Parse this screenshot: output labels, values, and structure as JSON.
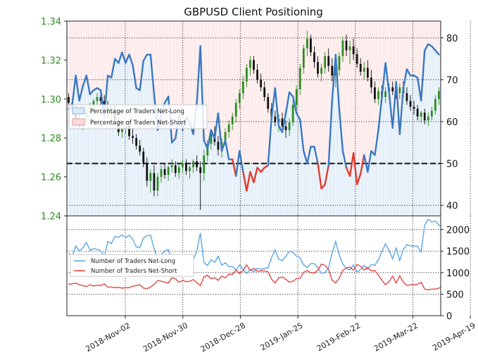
{
  "chart_data": {
    "type": "line",
    "title": "GBPUSD Client Positioning",
    "x_tick_labels": [
      "2018-Nov-02",
      "2018-Nov-30",
      "2018-Dec-28",
      "2019-Jan-25",
      "2019-Feb-22",
      "2019-Mar-22",
      "2019-Apr-19"
    ],
    "colors": {
      "price_axis": "#2e8b22",
      "candle_up": "#2e8b22",
      "candle_down": "#111111",
      "net_long_line": "#3a78c2",
      "net_short_line": "#e23b2e",
      "long_bg": "#dce9f7",
      "short_bg": "#fbdcdc",
      "number_long": "#4ea1e6",
      "number_short": "#e53935"
    },
    "top_panel": {
      "left_axis": {
        "ylim": [
          1.24,
          1.34
        ],
        "ticks": [
          "1.24",
          "1.26",
          "1.28",
          "1.30",
          "1.32",
          "1.34"
        ]
      },
      "right_axis": {
        "ylim": [
          37.5,
          84.0
        ],
        "ticks": [
          "40",
          "50",
          "60",
          "70",
          "80"
        ]
      },
      "reference_line": 50,
      "legend": [
        "Percentage of Traders Net-Long",
        "Percentage of Traders Net-Short"
      ],
      "legend_position": "center-left",
      "price_ohlc": [
        [
          1.301,
          1.303,
          1.297,
          1.298
        ],
        [
          1.298,
          1.3,
          1.294,
          1.295
        ],
        [
          1.295,
          1.297,
          1.288,
          1.29
        ],
        [
          1.29,
          1.292,
          1.285,
          1.286
        ],
        [
          1.286,
          1.29,
          1.284,
          1.289
        ],
        [
          1.289,
          1.295,
          1.287,
          1.293
        ],
        [
          1.293,
          1.298,
          1.291,
          1.296
        ],
        [
          1.296,
          1.3,
          1.293,
          1.299
        ],
        [
          1.299,
          1.303,
          1.296,
          1.301
        ],
        [
          1.301,
          1.304,
          1.297,
          1.299
        ],
        [
          1.299,
          1.302,
          1.294,
          1.296
        ],
        [
          1.296,
          1.299,
          1.29,
          1.292
        ],
        [
          1.292,
          1.296,
          1.289,
          1.294
        ],
        [
          1.294,
          1.297,
          1.288,
          1.289
        ],
        [
          1.289,
          1.291,
          1.281,
          1.283
        ],
        [
          1.283,
          1.287,
          1.28,
          1.285
        ],
        [
          1.285,
          1.289,
          1.282,
          1.287
        ],
        [
          1.287,
          1.289,
          1.279,
          1.281
        ],
        [
          1.281,
          1.285,
          1.277,
          1.28
        ],
        [
          1.28,
          1.282,
          1.274,
          1.276
        ],
        [
          1.276,
          1.279,
          1.271,
          1.273
        ],
        [
          1.273,
          1.275,
          1.265,
          1.267
        ],
        [
          1.267,
          1.27,
          1.255,
          1.258
        ],
        [
          1.258,
          1.264,
          1.252,
          1.262
        ],
        [
          1.262,
          1.266,
          1.25,
          1.253
        ],
        [
          1.253,
          1.262,
          1.25,
          1.26
        ],
        [
          1.26,
          1.266,
          1.257,
          1.264
        ],
        [
          1.264,
          1.267,
          1.259,
          1.261
        ],
        [
          1.261,
          1.266,
          1.258,
          1.265
        ],
        [
          1.265,
          1.269,
          1.262,
          1.266
        ],
        [
          1.266,
          1.268,
          1.26,
          1.262
        ],
        [
          1.262,
          1.267,
          1.259,
          1.265
        ],
        [
          1.265,
          1.269,
          1.262,
          1.267
        ],
        [
          1.267,
          1.269,
          1.261,
          1.263
        ],
        [
          1.263,
          1.266,
          1.259,
          1.265
        ],
        [
          1.265,
          1.269,
          1.262,
          1.268
        ],
        [
          1.268,
          1.271,
          1.263,
          1.265
        ],
        [
          1.265,
          1.268,
          1.243,
          1.262
        ],
        [
          1.262,
          1.274,
          1.258,
          1.271
        ],
        [
          1.271,
          1.279,
          1.268,
          1.277
        ],
        [
          1.277,
          1.284,
          1.274,
          1.282
        ],
        [
          1.282,
          1.286,
          1.276,
          1.278
        ],
        [
          1.278,
          1.281,
          1.271,
          1.274
        ],
        [
          1.274,
          1.28,
          1.27,
          1.278
        ],
        [
          1.278,
          1.285,
          1.276,
          1.283
        ],
        [
          1.283,
          1.289,
          1.28,
          1.287
        ],
        [
          1.287,
          1.293,
          1.284,
          1.291
        ],
        [
          1.291,
          1.3,
          1.288,
          1.298
        ],
        [
          1.298,
          1.305,
          1.295,
          1.303
        ],
        [
          1.303,
          1.312,
          1.3,
          1.309
        ],
        [
          1.309,
          1.318,
          1.306,
          1.316
        ],
        [
          1.316,
          1.322,
          1.312,
          1.32
        ],
        [
          1.32,
          1.322,
          1.313,
          1.315
        ],
        [
          1.315,
          1.318,
          1.308,
          1.31
        ],
        [
          1.31,
          1.313,
          1.304,
          1.306
        ],
        [
          1.306,
          1.309,
          1.299,
          1.301
        ],
        [
          1.301,
          1.303,
          1.293,
          1.295
        ],
        [
          1.295,
          1.298,
          1.289,
          1.291
        ],
        [
          1.291,
          1.294,
          1.286,
          1.288
        ],
        [
          1.288,
          1.292,
          1.283,
          1.29
        ],
        [
          1.29,
          1.293,
          1.284,
          1.286
        ],
        [
          1.286,
          1.289,
          1.28,
          1.284
        ],
        [
          1.284,
          1.29,
          1.281,
          1.288
        ],
        [
          1.288,
          1.299,
          1.286,
          1.297
        ],
        [
          1.297,
          1.307,
          1.294,
          1.305
        ],
        [
          1.305,
          1.318,
          1.302,
          1.316
        ],
        [
          1.316,
          1.328,
          1.313,
          1.326
        ],
        [
          1.326,
          1.335,
          1.322,
          1.331
        ],
        [
          1.331,
          1.333,
          1.322,
          1.324
        ],
        [
          1.324,
          1.327,
          1.316,
          1.319
        ],
        [
          1.319,
          1.322,
          1.311,
          1.313
        ],
        [
          1.313,
          1.318,
          1.309,
          1.316
        ],
        [
          1.316,
          1.324,
          1.313,
          1.322
        ],
        [
          1.322,
          1.326,
          1.314,
          1.317
        ],
        [
          1.317,
          1.321,
          1.309,
          1.312
        ],
        [
          1.312,
          1.317,
          1.306,
          1.315
        ],
        [
          1.315,
          1.324,
          1.312,
          1.322
        ],
        [
          1.322,
          1.332,
          1.319,
          1.33
        ],
        [
          1.33,
          1.333,
          1.322,
          1.325
        ],
        [
          1.325,
          1.33,
          1.318,
          1.327
        ],
        [
          1.327,
          1.331,
          1.32,
          1.323
        ],
        [
          1.323,
          1.326,
          1.316,
          1.318
        ],
        [
          1.318,
          1.321,
          1.312,
          1.314
        ],
        [
          1.314,
          1.319,
          1.31,
          1.316
        ],
        [
          1.316,
          1.32,
          1.309,
          1.311
        ],
        [
          1.311,
          1.315,
          1.303,
          1.306
        ],
        [
          1.306,
          1.309,
          1.298,
          1.3
        ],
        [
          1.3,
          1.306,
          1.297,
          1.304
        ],
        [
          1.304,
          1.307,
          1.298,
          1.301
        ],
        [
          1.301,
          1.306,
          1.298,
          1.304
        ],
        [
          1.304,
          1.308,
          1.3,
          1.306
        ],
        [
          1.306,
          1.309,
          1.302,
          1.304
        ],
        [
          1.304,
          1.307,
          1.3,
          1.303
        ],
        [
          1.303,
          1.308,
          1.3,
          1.306
        ],
        [
          1.306,
          1.309,
          1.301,
          1.303
        ],
        [
          1.303,
          1.306,
          1.297,
          1.299
        ],
        [
          1.299,
          1.302,
          1.294,
          1.296
        ],
        [
          1.296,
          1.299,
          1.292,
          1.295
        ],
        [
          1.295,
          1.297,
          1.289,
          1.291
        ],
        [
          1.291,
          1.294,
          1.288,
          1.293
        ],
        [
          1.293,
          1.295,
          1.287,
          1.289
        ],
        [
          1.289,
          1.293,
          1.286,
          1.291
        ],
        [
          1.291,
          1.296,
          1.289,
          1.294
        ],
        [
          1.294,
          1.302,
          1.292,
          1.3
        ],
        [
          1.3,
          1.306,
          1.297,
          1.304
        ]
      ],
      "percent_net_long": [
        63.0,
        64.0,
        71.0,
        65.0,
        68.5,
        71.0,
        66.5,
        67.5,
        68.0,
        67.5,
        61.0,
        71.0,
        70.5,
        75.0,
        74.0,
        76.5,
        74.0,
        76.0,
        73.5,
        68.0,
        67.5,
        74.5,
        76.0,
        76.0,
        66.5,
        58.0,
        61.5,
        64.5,
        66.0,
        55.0,
        56.0,
        61.5,
        58.0,
        61.0,
        60.0,
        57.0,
        64.5,
        78.0,
        55.5,
        53.5,
        58.0,
        56.0,
        62.0,
        53.0,
        55.5,
        51.0,
        51.0,
        47.0,
        53.0,
        48.0,
        43.5,
        48.0,
        45.5,
        49.0,
        48.0,
        49.0,
        49.5,
        61.0,
        68.0,
        59.0,
        57.5,
        62.0,
        67.0,
        66.0,
        62.0,
        60.5,
        53.0,
        50.0,
        54.0,
        54.0,
        50.0,
        44.0,
        45.0,
        49.5,
        65.0,
        76.0,
        63.0,
        53.0,
        49.0,
        47.0,
        52.5,
        45.0,
        47.5,
        52.0,
        48.0,
        53.0,
        52.0,
        58.0,
        66.0,
        74.0,
        67.0,
        58.5,
        69.5,
        57.0,
        68.0,
        72.5,
        71.0,
        71.0,
        70.5,
        65.0,
        77.0,
        78.5,
        78.0,
        77.0,
        76.0,
        74.0,
        74.0,
        72.5,
        59.0,
        63.0
      ],
      "net_long_threshold": 50
    },
    "bottom_panel": {
      "right_axis": {
        "ylim": [
          0,
          2320
        ],
        "ticks": [
          "0",
          "500",
          "1000",
          "1500",
          "2000"
        ]
      },
      "legend": [
        "Number of Traders Net-Long",
        "Number of Traders Net-Short"
      ],
      "legend_position": "upper-left",
      "series": [
        {
          "name": "Number of Traders Net-Long",
          "values": [
            1450,
            1380,
            1620,
            1500,
            1580,
            1700,
            1520,
            1560,
            1540,
            1510,
            1380,
            1720,
            1680,
            1840,
            1820,
            1880,
            1810,
            1870,
            1780,
            1600,
            1580,
            1800,
            1860,
            1870,
            1560,
            1330,
            1420,
            1500,
            1540,
            1250,
            1260,
            1420,
            1340,
            1400,
            1380,
            1300,
            1500,
            1920,
            1230,
            1170,
            1300,
            1240,
            1380,
            1170,
            1230,
            1140,
            1140,
            1060,
            1180,
            1080,
            980,
            1080,
            1020,
            1100,
            1080,
            1100,
            1110,
            1350,
            1530,
            1310,
            1280,
            1380,
            1500,
            1470,
            1380,
            1350,
            1180,
            1120,
            1210,
            1210,
            1120,
            980,
            1010,
            1110,
            1460,
            1720,
            1420,
            1200,
            1100,
            1060,
            1180,
            1010,
            1070,
            1170,
            1080,
            1190,
            1170,
            1300,
            1490,
            1670,
            1520,
            1320,
            1570,
            1280,
            1540,
            1650,
            1620,
            1620,
            1610,
            1480,
            2100,
            2240,
            2180,
            2200,
            2100,
            2080,
            2060,
            1980,
            1750,
            1720
          ]
        },
        {
          "name": "Number of Traders Net-Short",
          "values": [
            730,
            740,
            760,
            720,
            700,
            680,
            720,
            690,
            710,
            700,
            740,
            660,
            670,
            650,
            660,
            640,
            650,
            650,
            690,
            700,
            720,
            640,
            630,
            660,
            730,
            820,
            800,
            780,
            760,
            880,
            860,
            780,
            820,
            790,
            800,
            840,
            770,
            700,
            900,
            940,
            860,
            880,
            820,
            920,
            880,
            960,
            960,
            1060,
            980,
            1050,
            1180,
            1050,
            1100,
            1030,
            1040,
            1040,
            1020,
            850,
            760,
            880,
            900,
            850,
            780,
            800,
            860,
            870,
            1010,
            1050,
            1000,
            990,
            1060,
            1200,
            1170,
            1080,
            820,
            760,
            870,
            1050,
            1110,
            1130,
            1060,
            1190,
            1150,
            1060,
            1120,
            1040,
            1050,
            940,
            820,
            720,
            790,
            920,
            760,
            930,
            780,
            700,
            720,
            720,
            730,
            780,
            620,
            600,
            620,
            620,
            640,
            680,
            700,
            720,
            1180,
            1000
          ]
        }
      ]
    }
  }
}
